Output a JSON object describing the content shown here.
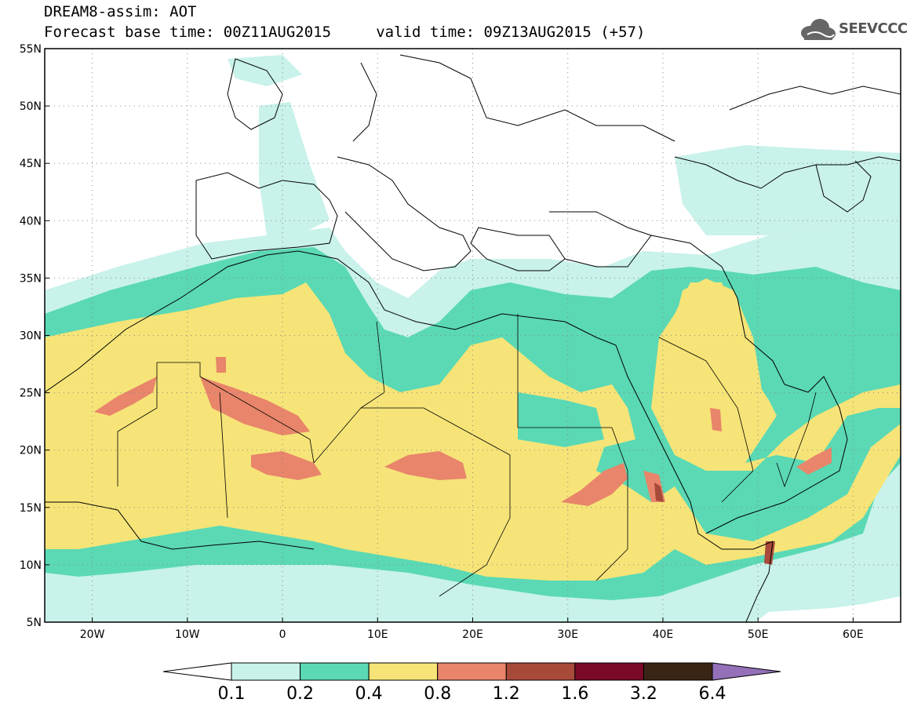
{
  "title": {
    "line1": "DREAM8-assim: AOT",
    "line2": "Forecast base time: 00Z11AUG2015     valid time: 09Z13AUG2015 (+57)"
  },
  "logo": {
    "text": "SEEVCCC",
    "icon": "cloud-logo-icon"
  },
  "map": {
    "projection": "lat-lon",
    "lon_range": [
      -25,
      65
    ],
    "lat_range": [
      5,
      55
    ],
    "lon_ticks": [
      {
        "value": -20,
        "label": "20W"
      },
      {
        "value": -10,
        "label": "10W"
      },
      {
        "value": 0,
        "label": "0"
      },
      {
        "value": 10,
        "label": "10E"
      },
      {
        "value": 20,
        "label": "20E"
      },
      {
        "value": 30,
        "label": "30E"
      },
      {
        "value": 40,
        "label": "40E"
      },
      {
        "value": 50,
        "label": "50E"
      },
      {
        "value": 60,
        "label": "60E"
      }
    ],
    "lat_ticks": [
      {
        "value": 55,
        "label": "55N"
      },
      {
        "value": 50,
        "label": "50N"
      },
      {
        "value": 45,
        "label": "45N"
      },
      {
        "value": 40,
        "label": "40N"
      },
      {
        "value": 35,
        "label": "35N"
      },
      {
        "value": 30,
        "label": "30N"
      },
      {
        "value": 25,
        "label": "25N"
      },
      {
        "value": 20,
        "label": "20N"
      },
      {
        "value": 15,
        "label": "15N"
      },
      {
        "value": 10,
        "label": "10N"
      },
      {
        "value": 5,
        "label": "5N"
      }
    ],
    "grid": "dotted"
  },
  "colorbar": {
    "bins": [
      {
        "from": 0.1,
        "to": 0.2,
        "color": "#c8f2ea"
      },
      {
        "from": 0.2,
        "to": 0.4,
        "color": "#5ad9b4"
      },
      {
        "from": 0.4,
        "to": 0.8,
        "color": "#f6e478"
      },
      {
        "from": 0.8,
        "to": 1.2,
        "color": "#e8856a"
      },
      {
        "from": 1.2,
        "to": 1.6,
        "color": "#a84a3a"
      },
      {
        "from": 1.6,
        "to": 3.2,
        "color": "#7a0a28"
      },
      {
        "from": 3.2,
        "to": 6.4,
        "color": "#3a2414"
      }
    ],
    "under_color": "#ffffff",
    "over_color": "#9370b8",
    "labels": [
      "0.1",
      "0.2",
      "0.4",
      "0.8",
      "1.2",
      "1.6",
      "3.2",
      "6.4"
    ]
  }
}
